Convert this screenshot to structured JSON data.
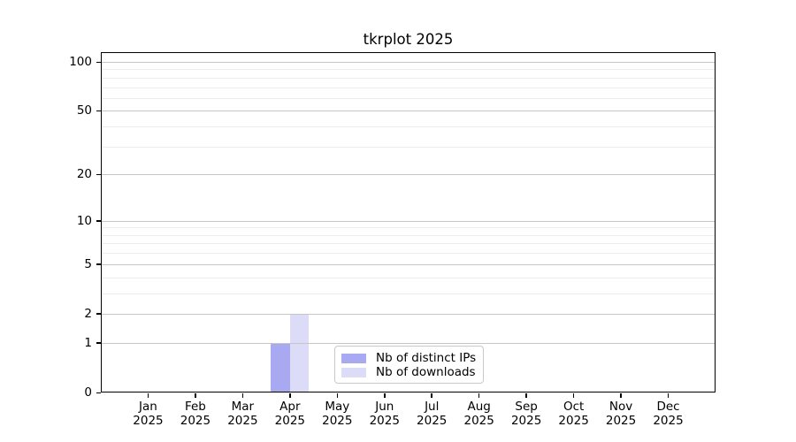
{
  "chart_data": {
    "type": "bar",
    "title": "tkrplot 2025",
    "categories": [
      "Jan",
      "Feb",
      "Mar",
      "Apr",
      "May",
      "Jun",
      "Jul",
      "Aug",
      "Sep",
      "Oct",
      "Nov",
      "Dec"
    ],
    "x_tick_line2": "2025",
    "series": [
      {
        "name": "Nb of distinct IPs",
        "color": "#a9a9f1",
        "values": [
          0,
          0,
          0,
          1,
          0,
          0,
          0,
          0,
          0,
          0,
          0,
          0
        ]
      },
      {
        "name": "Nb of downloads",
        "color": "#dcdcf9",
        "values": [
          0,
          0,
          0,
          2,
          0,
          0,
          0,
          0,
          0,
          0,
          0,
          0
        ]
      }
    ],
    "yscale": "log1p",
    "ylim": [
      0,
      100
    ],
    "yticks": [
      0,
      1,
      2,
      5,
      10,
      20,
      50,
      100
    ],
    "minor_gridlines": [
      3,
      4,
      6,
      7,
      8,
      9,
      30,
      40,
      60,
      70,
      80,
      90
    ],
    "grid": "horizontal",
    "legend_position": "inside-bottom-center",
    "colors": {
      "major_grid": "#c6c6c6",
      "minor_grid": "#ececec",
      "axis": "#000000"
    }
  }
}
